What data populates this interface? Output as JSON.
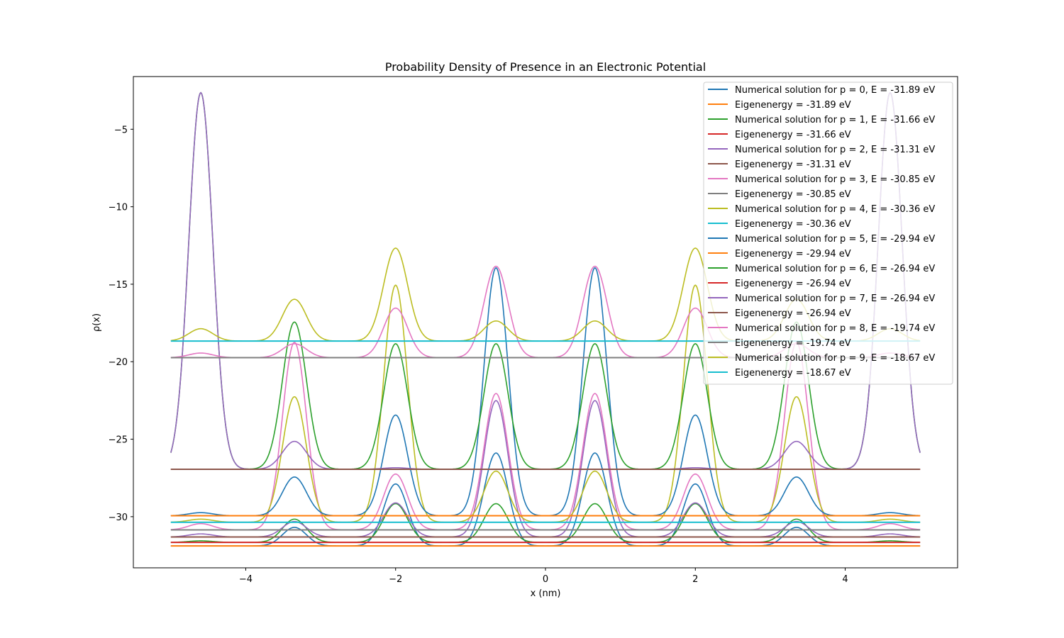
{
  "chart_data": {
    "type": "line",
    "title": "Probability Density of Presence in an Electronic Potential",
    "xlabel": "x (nm)",
    "ylabel": "ρ(x)",
    "xlim": [
      -5.5,
      5.5
    ],
    "ylim": [
      -33.3,
      -1.6
    ],
    "xticks": [
      -4,
      -2,
      0,
      2,
      4
    ],
    "xtick_labels": [
      "−4",
      "−2",
      "0",
      "2",
      "4"
    ],
    "yticks": [
      -5,
      -10,
      -15,
      -20,
      -25,
      -30
    ],
    "ytick_labels": [
      "−5",
      "−10",
      "−15",
      "−20",
      "−25",
      "−30"
    ],
    "grid": false,
    "legend_position": "top-right",
    "wells_x": [
      -4.6,
      -3.35,
      -2.0,
      -0.66,
      0.66,
      2.0,
      3.35,
      4.6
    ],
    "series": [
      {
        "name": "Numerical solution for p = 0, E = -31.89 eV",
        "kind": "density",
        "energy": -31.89,
        "color": "#1f77b4",
        "peaks": [
          0,
          1.2,
          4.0,
          6.0,
          6.0,
          4.0,
          1.2,
          0
        ],
        "node_depth": 0.05
      },
      {
        "name": "Eigenenergy = -31.89 eV",
        "kind": "level",
        "energy": -31.89,
        "color": "#ff7f0e"
      },
      {
        "name": "Numerical solution for p = 1, E = -31.66 eV",
        "kind": "density",
        "energy": -31.66,
        "color": "#2ca02c",
        "peaks": [
          0.1,
          1.5,
          2.5,
          2.5,
          2.5,
          2.5,
          1.5,
          0.1
        ],
        "node_depth": 0.15
      },
      {
        "name": "Eigenenergy = -31.66 eV",
        "kind": "level",
        "energy": -31.66,
        "color": "#d62728"
      },
      {
        "name": "Numerical solution for p = 2, E = -31.31 eV",
        "kind": "density",
        "energy": -31.31,
        "color": "#9467bd",
        "peaks": [
          0.2,
          1.0,
          2.2,
          8.8,
          8.8,
          2.2,
          1.0,
          0.2
        ],
        "node_depth": 0.0
      },
      {
        "name": "Eigenenergy = -31.31 eV",
        "kind": "level",
        "energy": -31.31,
        "color": "#8c564b"
      },
      {
        "name": "Numerical solution for p = 3, E = -30.85 eV",
        "kind": "density",
        "energy": -30.85,
        "color": "#e377c2",
        "peaks": [
          0.4,
          12.1,
          3.6,
          8.8,
          8.8,
          3.6,
          12.1,
          0.4
        ],
        "node_depth": 0.0
      },
      {
        "name": "Eigenenergy = -30.85 eV",
        "kind": "level",
        "energy": -30.85,
        "color": "#7f7f7f"
      },
      {
        "name": "Numerical solution for p = 4, E = -30.36 eV",
        "kind": "density",
        "energy": -30.36,
        "color": "#bcbd22",
        "peaks": [
          0.2,
          8.1,
          15.3,
          3.3,
          3.3,
          15.3,
          8.1,
          0.2
        ],
        "node_depth": 0.0
      },
      {
        "name": "Eigenenergy = -30.36 eV",
        "kind": "level",
        "energy": -30.36,
        "color": "#17becf"
      },
      {
        "name": "Numerical solution for p = 5, E = -29.94 eV",
        "kind": "density",
        "energy": -29.94,
        "color": "#1f77b4",
        "peaks": [
          0.2,
          2.5,
          6.5,
          16.0,
          16.0,
          6.5,
          2.5,
          0.2
        ],
        "node_depth": 0.0
      },
      {
        "name": "Eigenenergy = -29.94 eV",
        "kind": "level",
        "energy": -29.94,
        "color": "#ff7f0e"
      },
      {
        "name": "Numerical solution for p = 6, E = -26.94 eV",
        "kind": "density",
        "energy": -26.94,
        "color": "#2ca02c",
        "peaks": [
          24.3,
          9.5,
          8.1,
          8.1,
          8.1,
          8.1,
          9.5,
          24.3
        ],
        "node_depth": 0.2
      },
      {
        "name": "Eigenenergy = -26.94 eV",
        "kind": "level",
        "energy": -26.94,
        "color": "#d62728"
      },
      {
        "name": "Numerical solution for p = 7, E = -26.94 eV",
        "kind": "density",
        "energy": -26.94,
        "color": "#9467bd",
        "peaks": [
          24.3,
          1.8,
          0.1,
          0.0,
          0.0,
          0.1,
          1.8,
          24.3
        ],
        "node_depth": 0.0
      },
      {
        "name": "Eigenenergy = -26.94 eV",
        "kind": "level",
        "energy": -26.94,
        "color": "#8c564b"
      },
      {
        "name": "Numerical solution for p = 8, E = -19.74 eV",
        "kind": "density",
        "energy": -19.74,
        "color": "#e377c2",
        "peaks": [
          0.3,
          0.9,
          3.2,
          5.9,
          5.9,
          3.2,
          0.9,
          0.3
        ],
        "node_depth": 0.0
      },
      {
        "name": "Eigenenergy = -19.74 eV",
        "kind": "level",
        "energy": -19.74,
        "color": "#7f7f7f"
      },
      {
        "name": "Numerical solution for p = 9, E = -18.67 eV",
        "kind": "density",
        "energy": -18.67,
        "color": "#bcbd22",
        "peaks": [
          0.8,
          2.7,
          6.0,
          1.3,
          1.3,
          6.0,
          2.7,
          0.8
        ],
        "node_depth": 0.0
      },
      {
        "name": "Eigenenergy = -18.67 eV",
        "kind": "level",
        "energy": -18.67,
        "color": "#17becf"
      }
    ]
  }
}
